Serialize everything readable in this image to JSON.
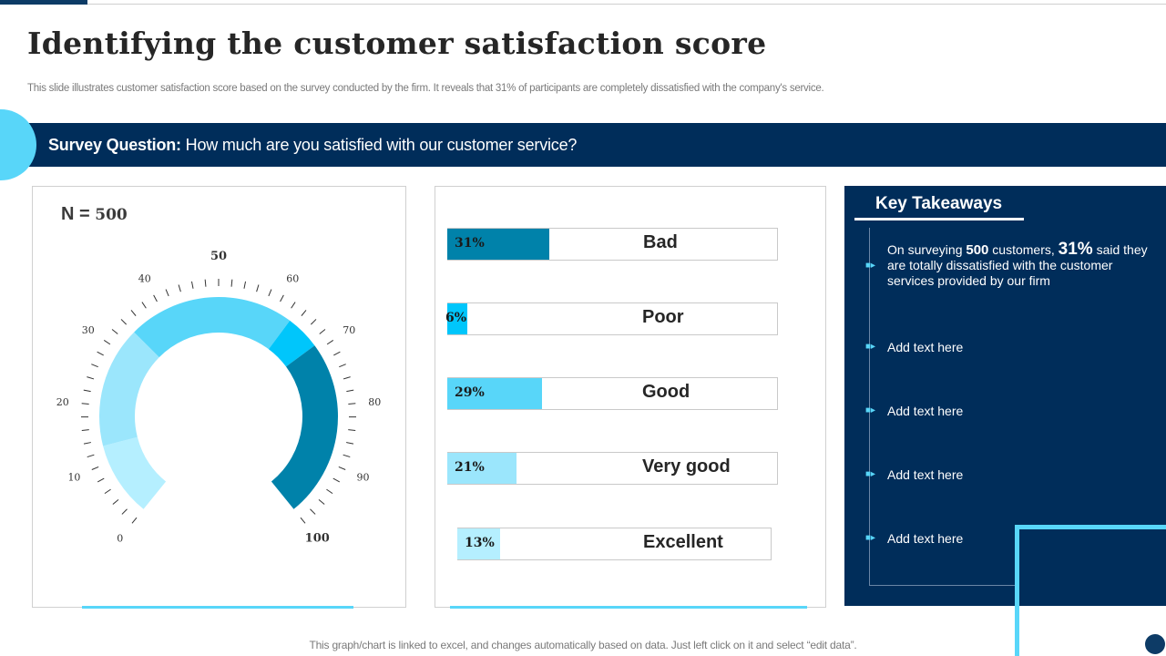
{
  "title": "Identifying the customer satisfaction score",
  "subtitle": "This slide illustrates customer satisfaction score based on the survey conducted by the firm. It reveals that 31% of participants are completely dissatisfied with the  company's service.",
  "survey": {
    "label": "Survey Question:",
    "question": " How much are you satisfied with our customer service?"
  },
  "gauge": {
    "n_label": "N = ",
    "n_value": "500",
    "tick_labels": [
      "0",
      "10",
      "20",
      "30",
      "40",
      "50",
      "60",
      "70",
      "80",
      "90",
      "100"
    ],
    "segments": [
      {
        "name": "excellent",
        "percent": 13,
        "color": "#b5efff"
      },
      {
        "name": "very-good",
        "percent": 21,
        "color": "#9be6fc"
      },
      {
        "name": "good",
        "percent": 29,
        "color": "#58d6f9"
      },
      {
        "name": "poor",
        "percent": 6,
        "color": "#00c6fb"
      },
      {
        "name": "bad",
        "percent": 31,
        "color": "#0082aa"
      }
    ]
  },
  "chart_data": {
    "type": "bar",
    "orientation": "horizontal",
    "categories": [
      "Bad",
      "Poor",
      "Good",
      "Very good",
      "Excellent"
    ],
    "values": [
      31,
      6,
      29,
      21,
      13
    ],
    "labels": [
      "31%",
      "6%",
      "29%",
      "21%",
      "13%"
    ],
    "colors": [
      "#0082aa",
      "#00c6fb",
      "#58d6f9",
      "#9be6fc",
      "#b5efff"
    ],
    "xlim": [
      0,
      100
    ],
    "title": "",
    "xlabel": "",
    "ylabel": ""
  },
  "takeaways": {
    "title": "Key Takeaways",
    "first": {
      "pre": "On surveying ",
      "num1": "500",
      "mid": " customers, ",
      "num2": "31%",
      "post": " said they are totally dissatisfied with the customer services provided by our firm"
    },
    "items": [
      "Add text here",
      "Add text here",
      "Add text here",
      "Add text here"
    ]
  },
  "footer": "This graph/chart is linked to excel,  and changes automatically based on data. Just left click on it and select “edit data”."
}
